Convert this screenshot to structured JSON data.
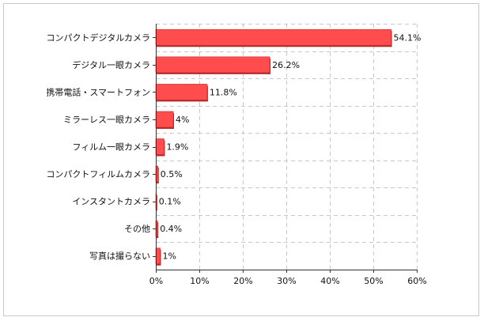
{
  "chart_data": {
    "type": "bar",
    "orientation": "horizontal",
    "categories": [
      "コンパクトデジタルカメラ",
      "デジタル一眼カメラ",
      "携帯電話・スマートフォン",
      "ミラーレス一眼カメラ",
      "フィルム一眼カメラ",
      "コンパクトフィルムカメラ",
      "インスタントカメラ",
      "その他",
      "写真は撮らない"
    ],
    "values": [
      54.1,
      26.2,
      11.8,
      4,
      1.9,
      0.5,
      0.1,
      0.4,
      1
    ],
    "value_labels": [
      "54.1%",
      "26.2%",
      "11.8%",
      "4%",
      "1.9%",
      "0.5%",
      "0.1%",
      "0.4%",
      "1%"
    ],
    "xlim": [
      0,
      60
    ],
    "xticks": [
      0,
      10,
      20,
      30,
      40,
      50,
      60
    ],
    "xtick_labels": [
      "0%",
      "10%",
      "20%",
      "30%",
      "40%",
      "50%",
      "60%"
    ],
    "grid": true,
    "colors": {
      "bar": "#ff4d4d",
      "bar_edge": "#c83030",
      "bar_shadow": "#b02828"
    }
  }
}
